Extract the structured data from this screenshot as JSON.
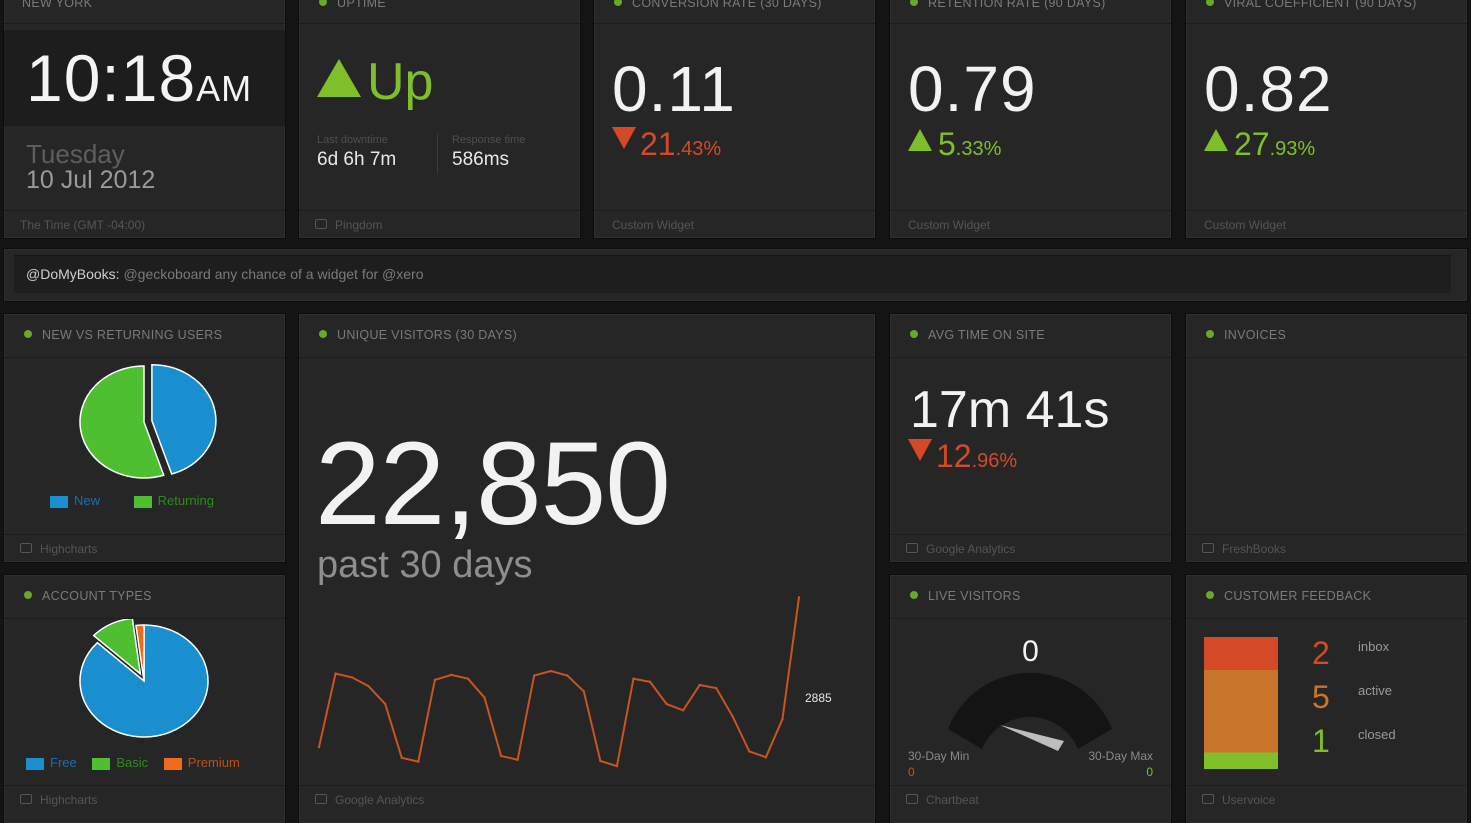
{
  "clock": {
    "title": "NEW YORK",
    "time": "10:18",
    "ampm": "AM",
    "day": "Tuesday",
    "date": "10 Jul 2012",
    "footer": "The Time (GMT -04:00)"
  },
  "uptime": {
    "title": "UPTIME",
    "status": "Up",
    "last_downtime_label": "Last downtime",
    "last_downtime": "6d 6h 7m",
    "response_label": "Response time",
    "response": "586ms",
    "footer": "Pingdom"
  },
  "conversion": {
    "title": "CONVERSION RATE (30 DAYS)",
    "value": "0.11",
    "change_int": "21",
    "change_dec": ".43%",
    "direction": "down",
    "footer": "Custom Widget"
  },
  "retention": {
    "title": "RETENTION RATE (90 DAYS)",
    "value": "0.79",
    "change_int": "5",
    "change_dec": ".33%",
    "direction": "up",
    "footer": "Custom Widget"
  },
  "viral": {
    "title": "VIRAL COEFFICIENT (90 DAYS)",
    "value": "0.82",
    "change_int": "27",
    "change_dec": ".93%",
    "direction": "up",
    "footer": "Custom Widget"
  },
  "ticker": {
    "user": "@DoMyBooks:",
    "message": "@geckoboard any chance of a widget for @xero"
  },
  "new_vs_returning": {
    "title": "NEW VS RETURNING USERS",
    "legend_new": "New",
    "legend_returning": "Returning",
    "footer": "Highcharts"
  },
  "account_types": {
    "title": "ACCOUNT TYPES",
    "legend_free": "Free",
    "legend_basic": "Basic",
    "legend_premium": "Premium",
    "footer": "Highcharts"
  },
  "unique_visitors": {
    "title": "UNIQUE VISITORS (30 DAYS)",
    "value": "22,850",
    "caption": "past 30 days",
    "last_point_label": "2885",
    "footer": "Google Analytics"
  },
  "avg_time": {
    "title": "AVG TIME ON SITE",
    "value": "17m 41s",
    "change_int": "12",
    "change_dec": ".96%",
    "direction": "down",
    "footer": "Google Analytics"
  },
  "invoices": {
    "title": "INVOICES",
    "footer": "FreshBooks"
  },
  "live_visitors": {
    "title": "LIVE VISITORS",
    "value": "0",
    "min_label": "30-Day Min",
    "min_value": "0",
    "max_label": "30-Day Max",
    "max_value": "0",
    "footer": "Chartbeat"
  },
  "feedback": {
    "title": "CUSTOMER FEEDBACK",
    "inbox_count": "2",
    "inbox_label": "inbox",
    "active_count": "5",
    "active_label": "active",
    "closed_count": "1",
    "closed_label": "closed",
    "footer": "Uservoice"
  },
  "colors": {
    "green": "#7fc02a",
    "red": "#d44a26",
    "blue": "#1a8fd0",
    "orange": "#c8742a",
    "line": "#c9541f"
  },
  "chart_data": [
    {
      "type": "pie",
      "title": "NEW VS RETURNING USERS",
      "categories": [
        "New",
        "Returning"
      ],
      "values": [
        45,
        55
      ]
    },
    {
      "type": "pie",
      "title": "ACCOUNT TYPES",
      "categories": [
        "Free",
        "Basic",
        "Premium"
      ],
      "values": [
        87,
        11,
        2
      ]
    },
    {
      "type": "line",
      "title": "UNIQUE VISITORS (30 DAYS)",
      "x": [
        1,
        2,
        3,
        4,
        5,
        6,
        7,
        8,
        9,
        10,
        11,
        12,
        13,
        14,
        15,
        16,
        17,
        18,
        19,
        20,
        21,
        22,
        23,
        24,
        25,
        26,
        27,
        28,
        29,
        30
      ],
      "values": [
        520,
        1680,
        1620,
        1480,
        1200,
        350,
        290,
        1580,
        1660,
        1600,
        1300,
        380,
        320,
        1650,
        1720,
        1650,
        1400,
        300,
        220,
        1600,
        1550,
        1200,
        1100,
        1500,
        1450,
        1000,
        450,
        360,
        960,
        2885
      ],
      "last_label": "2885"
    },
    {
      "type": "bar",
      "title": "CUSTOMER FEEDBACK",
      "categories": [
        "inbox",
        "active",
        "closed"
      ],
      "values": [
        2,
        5,
        1
      ]
    }
  ]
}
